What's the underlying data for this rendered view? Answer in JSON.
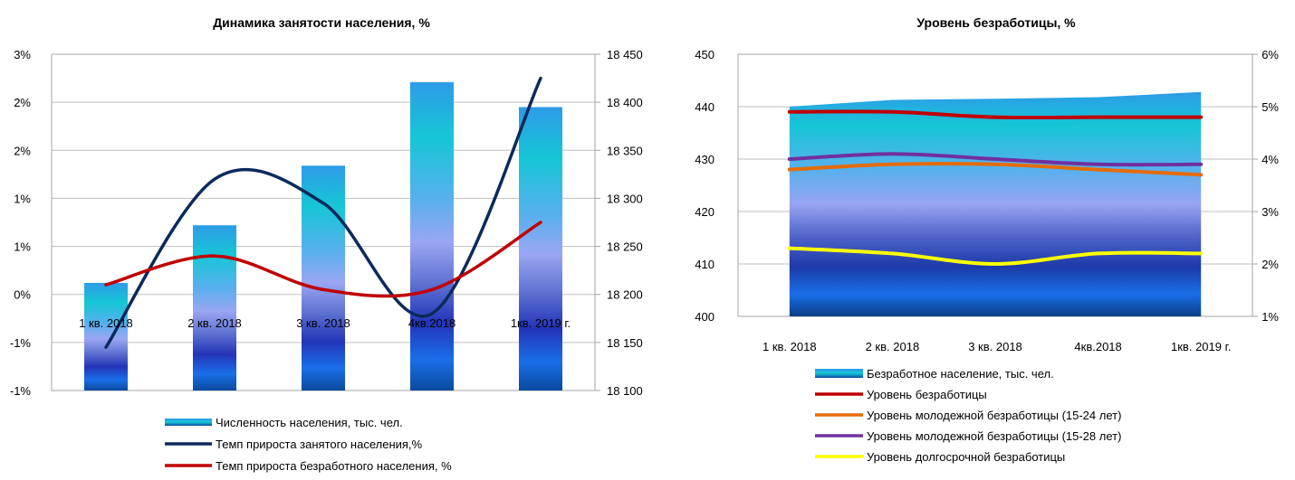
{
  "chart_data": [
    {
      "type": "bar",
      "title": "Динамика занятости населения, %",
      "categories": [
        "1 кв. 2018",
        "2 кв. 2018",
        "3 кв. 2018",
        "4кв.2018",
        "1кв. 2019 г."
      ],
      "y_left_ticks": [
        "3%",
        "2%",
        "2%",
        "1%",
        "1%",
        "0%",
        "-1%",
        "-1%"
      ],
      "y_left_range": [
        -1.0,
        2.5
      ],
      "y_right_ticks": [
        "18 450",
        "18 400",
        "18 350",
        "18 300",
        "18 250",
        "18 200",
        "18 150",
        "18 100"
      ],
      "y_right_range": [
        18100,
        18450
      ],
      "grid": true,
      "legend_position": "bottom",
      "series": [
        {
          "name": "Численность населения, тыс. чел.",
          "type": "bar",
          "axis": "right",
          "values": [
            18212,
            18272,
            18334,
            18421,
            18395
          ]
        },
        {
          "name": "Темп прироста занятого населения,%",
          "type": "line",
          "axis": "left",
          "color": "#0b2a5c",
          "values": [
            -0.55,
            1.2,
            0.95,
            -0.2,
            2.25
          ]
        },
        {
          "name": "Темп прироста безработного населения, %",
          "type": "line",
          "axis": "left",
          "color": "#c00000",
          "values": [
            0.1,
            0.4,
            0.05,
            0.05,
            0.75
          ]
        }
      ]
    },
    {
      "type": "area",
      "title": "Уровень безработицы, %",
      "categories": [
        "1 кв. 2018",
        "2 кв. 2018",
        "3 кв. 2018",
        "4кв.2018",
        "1кв. 2019 г."
      ],
      "y_left_ticks": [
        "450",
        "440",
        "430",
        "420",
        "410",
        "400"
      ],
      "y_left_range": [
        400,
        450
      ],
      "y_right_ticks": [
        "6%",
        "5%",
        "4%",
        "3%",
        "2%",
        "1%"
      ],
      "y_right_range": [
        1,
        6
      ],
      "grid": true,
      "legend_position": "bottom",
      "series": [
        {
          "name": "Безработное население, тыс. чел.",
          "type": "area",
          "axis": "left",
          "values": [
            440,
            441.3,
            441.5,
            441.8,
            442.8
          ]
        },
        {
          "name": "Уровень безработицы",
          "type": "line",
          "axis": "right",
          "color": "#c00000",
          "values": [
            4.9,
            4.9,
            4.8,
            4.8,
            4.8
          ]
        },
        {
          "name": "Уровень молодежной безработицы (15-24  лет)",
          "type": "line",
          "axis": "right",
          "color": "#e36c0a",
          "values": [
            3.8,
            3.9,
            3.9,
            3.8,
            3.7
          ]
        },
        {
          "name": "Уровень молодежной безработицы (15-28 лет)",
          "type": "line",
          "axis": "right",
          "color": "#7030a0",
          "values": [
            4.0,
            4.1,
            4.0,
            3.9,
            3.9
          ]
        },
        {
          "name": "Уровень долгосрочной безработицы",
          "type": "line",
          "axis": "right",
          "color": "#ffff00",
          "values": [
            2.3,
            2.2,
            2.0,
            2.2,
            2.2
          ]
        }
      ]
    }
  ]
}
